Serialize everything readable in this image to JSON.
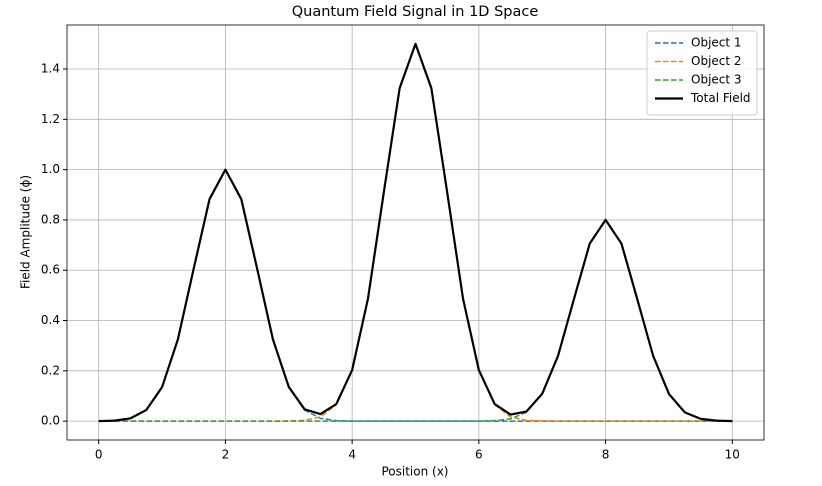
{
  "chart_data": {
    "type": "line",
    "title": "Quantum Field Signal in 1D Space",
    "x_label": "Position (x)",
    "y_label": "Field Amplitude (ϕ)",
    "x": [
      0,
      0.25,
      0.5,
      0.75,
      1,
      1.25,
      1.5,
      1.75,
      2,
      2.25,
      2.5,
      2.75,
      3,
      3.25,
      3.5,
      3.75,
      4,
      4.25,
      4.5,
      4.75,
      5,
      5.25,
      5.5,
      5.75,
      6,
      6.25,
      6.5,
      6.75,
      7,
      7.25,
      7.5,
      7.75,
      8,
      8.25,
      8.5,
      8.75,
      9,
      9.25,
      9.5,
      9.75,
      10
    ],
    "series": [
      {
        "name": "Object 1",
        "color": "#1f77b4",
        "linestyle": "dashed",
        "values": [
          0,
          0.002,
          0.011,
          0.044,
          0.135,
          0.325,
          0.607,
          0.883,
          1,
          0.883,
          0.607,
          0.325,
          0.135,
          0.044,
          0.011,
          0.002,
          0,
          0,
          0,
          0,
          0,
          0,
          0,
          0,
          0,
          0,
          0,
          0,
          0,
          0,
          0,
          0,
          0,
          0,
          0,
          0,
          0,
          0,
          0,
          0,
          0
        ]
      },
      {
        "name": "Object 2",
        "color": "#ff7f0e",
        "linestyle": "dashed",
        "values": [
          0,
          0,
          0,
          0,
          0,
          0,
          0,
          0,
          0,
          0,
          0,
          0,
          0.001,
          0.003,
          0.017,
          0.066,
          0.203,
          0.487,
          0.91,
          1.324,
          1.5,
          1.324,
          0.91,
          0.487,
          0.203,
          0.066,
          0.017,
          0.003,
          0.001,
          0,
          0,
          0,
          0,
          0,
          0,
          0,
          0,
          0,
          0,
          0,
          0
        ]
      },
      {
        "name": "Object 3",
        "color": "#2ca02c",
        "linestyle": "dashed",
        "values": [
          0,
          0,
          0,
          0,
          0,
          0,
          0,
          0,
          0,
          0,
          0,
          0,
          0,
          0,
          0,
          0,
          0,
          0,
          0,
          0,
          0,
          0,
          0,
          0,
          0,
          0.002,
          0.009,
          0.035,
          0.108,
          0.26,
          0.485,
          0.706,
          0.8,
          0.706,
          0.485,
          0.26,
          0.108,
          0.035,
          0.009,
          0.002,
          0
        ]
      },
      {
        "name": "Total Field",
        "color": "#000000",
        "linestyle": "solid",
        "values": [
          0,
          0.002,
          0.011,
          0.044,
          0.135,
          0.325,
          0.607,
          0.883,
          1,
          0.883,
          0.607,
          0.325,
          0.136,
          0.047,
          0.028,
          0.068,
          0.203,
          0.487,
          0.91,
          1.324,
          1.5,
          1.324,
          0.91,
          0.487,
          0.203,
          0.068,
          0.026,
          0.038,
          0.109,
          0.26,
          0.485,
          0.706,
          0.8,
          0.706,
          0.485,
          0.26,
          0.108,
          0.035,
          0.009,
          0.002,
          0
        ]
      }
    ],
    "xlim": [
      -0.5,
      10.5
    ],
    "xticks": [
      0,
      2,
      4,
      6,
      8,
      10
    ],
    "ylim": [
      -0.075,
      1.575
    ],
    "yticks": [
      {
        "value": 0,
        "label": "0.0"
      },
      {
        "value": 0.2,
        "label": "0.2"
      },
      {
        "value": 0.4,
        "label": "0.4"
      },
      {
        "value": 0.6,
        "label": "0.6"
      },
      {
        "value": 0.8,
        "label": "0.8"
      },
      {
        "value": 1,
        "label": "1.0"
      },
      {
        "value": 1.2,
        "label": "1.2"
      },
      {
        "value": 1.4,
        "label": "1.4"
      }
    ],
    "grid": true,
    "legend": "upper right"
  }
}
